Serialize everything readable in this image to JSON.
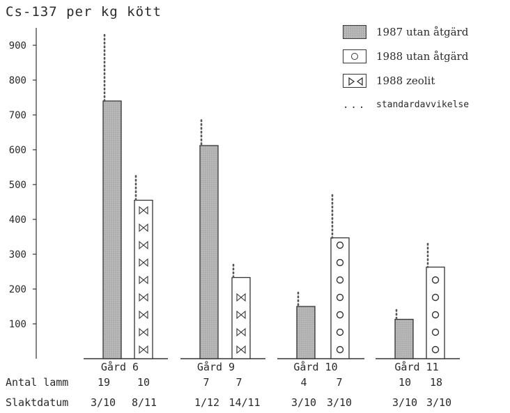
{
  "chart_data": {
    "type": "bar",
    "title": "Cs-137 per kg kött",
    "ylim": [
      0,
      950
    ],
    "yticks": [
      100,
      200,
      300,
      400,
      500,
      600,
      700,
      800,
      900
    ],
    "ytick_labels": [
      "100",
      "200",
      "300",
      "400",
      "500",
      "600",
      "700",
      "800",
      "900"
    ],
    "groups": [
      {
        "label": "Gård 6",
        "bars": [
          {
            "series": "1987 utan åtgärd",
            "value": 740,
            "sd_top": 930,
            "antal_lamm": "19",
            "slaktdatum": "3/10"
          },
          {
            "series": "1988 zeolit",
            "value": 455,
            "sd_top": 525,
            "antal_lamm": "10",
            "slaktdatum": "8/11"
          }
        ]
      },
      {
        "label": "Gård 9",
        "bars": [
          {
            "series": "1987 utan åtgärd",
            "value": 612,
            "sd_top": 685,
            "antal_lamm": "7",
            "slaktdatum": "1/12"
          },
          {
            "series": "1988 zeolit",
            "value": 233,
            "sd_top": 270,
            "antal_lamm": "7",
            "slaktdatum": "14/11"
          }
        ]
      },
      {
        "label": "Gård 10",
        "bars": [
          {
            "series": "1987 utan åtgärd",
            "value": 150,
            "sd_top": 190,
            "antal_lamm": "4",
            "slaktdatum": "3/10"
          },
          {
            "series": "1988 utan åtgärd",
            "value": 347,
            "sd_top": 470,
            "antal_lamm": "7",
            "slaktdatum": "3/10"
          }
        ]
      },
      {
        "label": "Gård 11",
        "bars": [
          {
            "series": "1987 utan åtgärd",
            "value": 113,
            "sd_top": 140,
            "antal_lamm": "10",
            "slaktdatum": "3/10"
          },
          {
            "series": "1988 utan åtgärd",
            "value": 263,
            "sd_top": 330,
            "antal_lamm": "18",
            "slaktdatum": "3/10"
          }
        ]
      }
    ],
    "legend": {
      "placement": "top-right",
      "entries": [
        {
          "label": "1987 utan åtgärd",
          "pattern": "stippled-gray"
        },
        {
          "label": "1988 utan åtgärd",
          "pattern": "circles"
        },
        {
          "label": "1988 zeolit",
          "pattern": "triangles"
        },
        {
          "label": "standardavvikelse",
          "pattern": "dots"
        }
      ]
    },
    "row_labels": {
      "antal": "Antal lamm",
      "slakt": "Slaktdatum"
    },
    "colors": {
      "bar_gray": "#b9b9b9",
      "stroke": "#333333",
      "dots": "#555555"
    }
  }
}
